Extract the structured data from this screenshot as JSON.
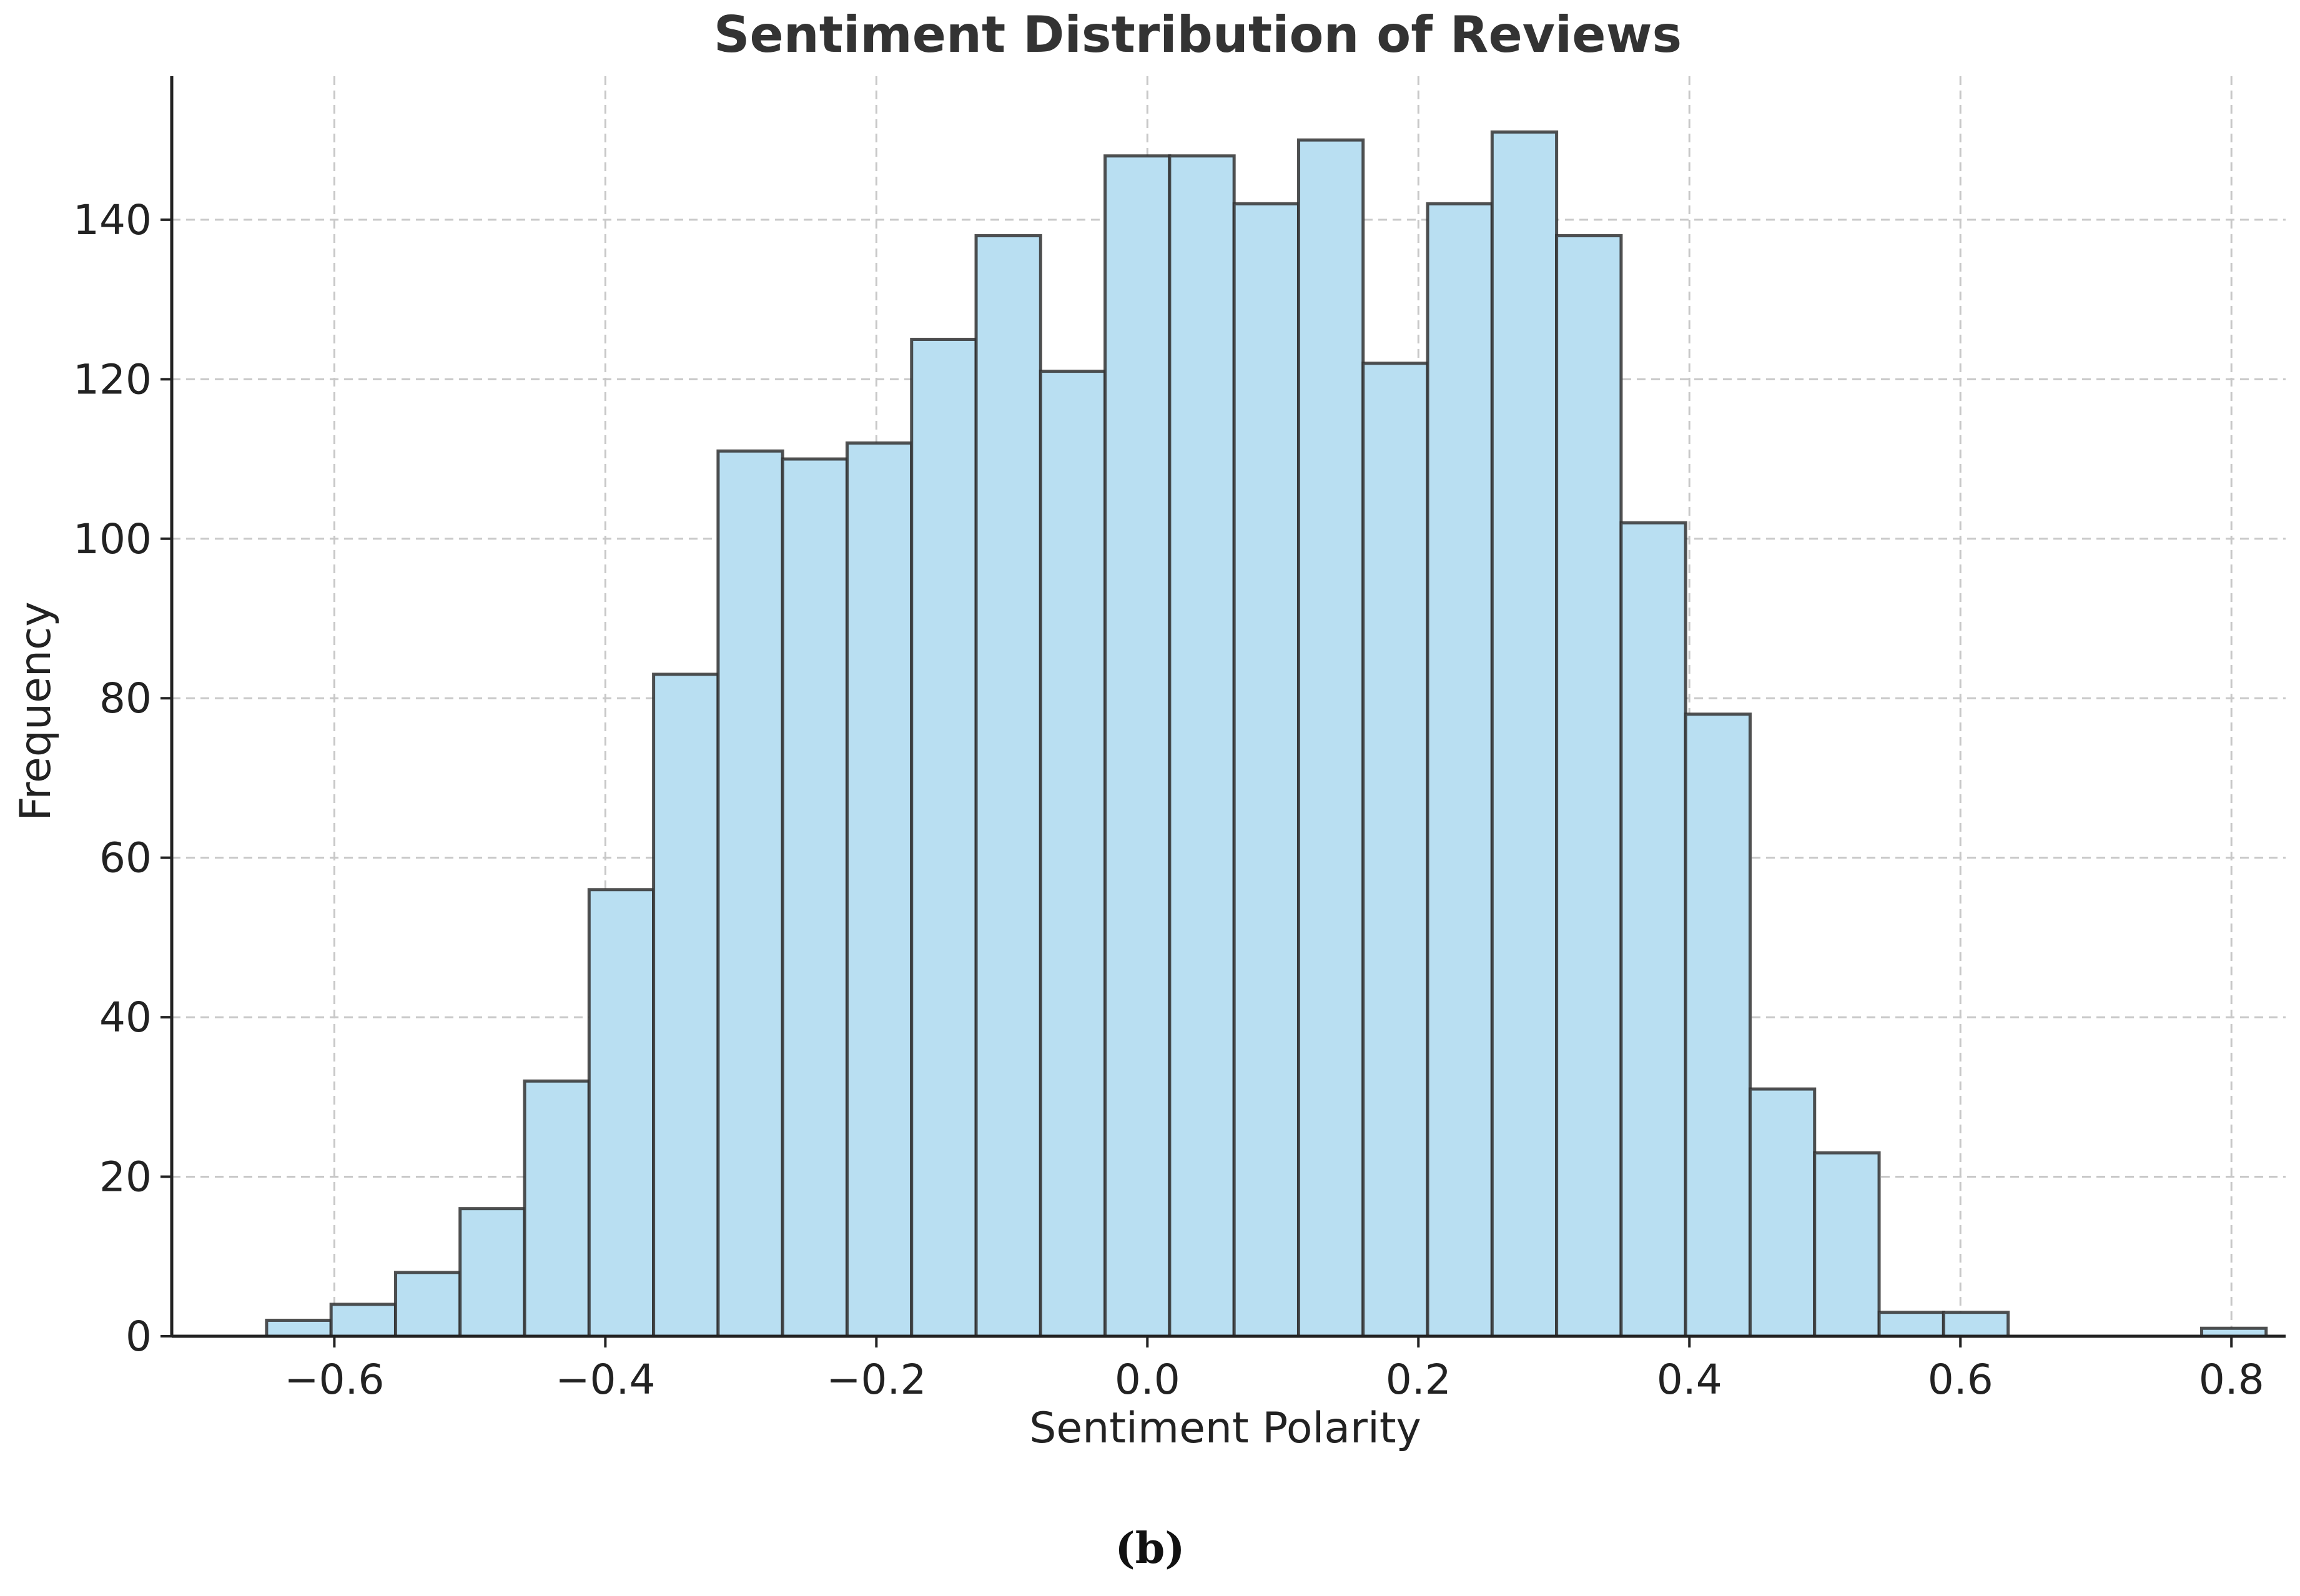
{
  "chart_data": {
    "type": "bar",
    "title": "Sentiment Distribution of Reviews",
    "xlabel": "Sentiment Polarity",
    "ylabel": "Frequency",
    "x_bin_start": -0.65,
    "x_bin_width": 0.0476,
    "values": [
      2,
      4,
      8,
      16,
      32,
      56,
      83,
      111,
      110,
      112,
      125,
      138,
      121,
      148,
      148,
      142,
      150,
      122,
      142,
      151,
      138,
      102,
      78,
      31,
      23,
      3,
      3,
      0,
      0,
      0,
      1
    ],
    "xlim": [
      -0.72,
      0.84
    ],
    "ylim": [
      0,
      158
    ],
    "xticks": [
      -0.6,
      -0.4,
      -0.2,
      0.0,
      0.2,
      0.4,
      0.6,
      0.8
    ],
    "xtick_labels": [
      "−0.6",
      "−0.4",
      "−0.2",
      "0.0",
      "0.2",
      "0.4",
      "0.6",
      "0.8"
    ],
    "yticks": [
      0,
      20,
      40,
      60,
      80,
      100,
      120,
      140
    ],
    "ytick_labels": [
      "0",
      "20",
      "40",
      "60",
      "80",
      "100",
      "120",
      "140"
    ],
    "grid": true,
    "bar_color": "#b9dff2",
    "edge_color": "#333333"
  },
  "caption": "(b)"
}
